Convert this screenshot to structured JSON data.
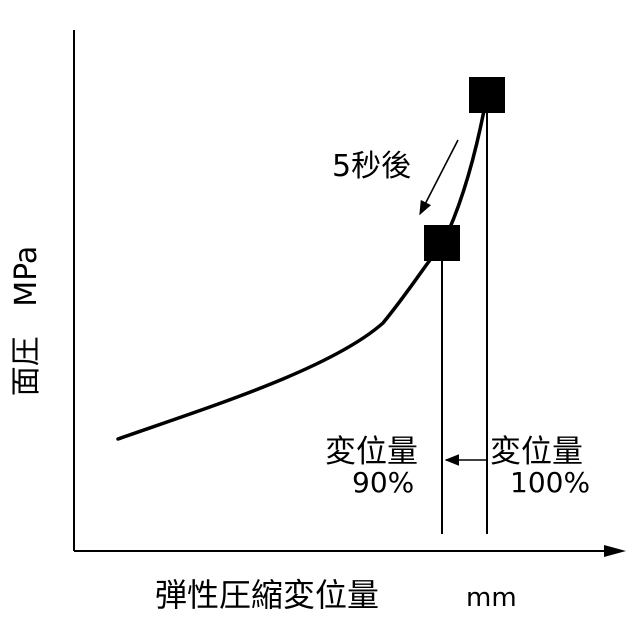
{
  "axes": {
    "y_label": "面圧",
    "y_unit": "MPa",
    "x_label": "弾性圧縮変位量",
    "x_unit": "mm"
  },
  "annotations": {
    "time_label": "5秒後",
    "left_marker": {
      "title": "変位量",
      "value": "90%"
    },
    "right_marker": {
      "title": "変位量",
      "value": "100%"
    }
  },
  "colors": {
    "ink": "#000000",
    "background": "#ffffff"
  }
}
